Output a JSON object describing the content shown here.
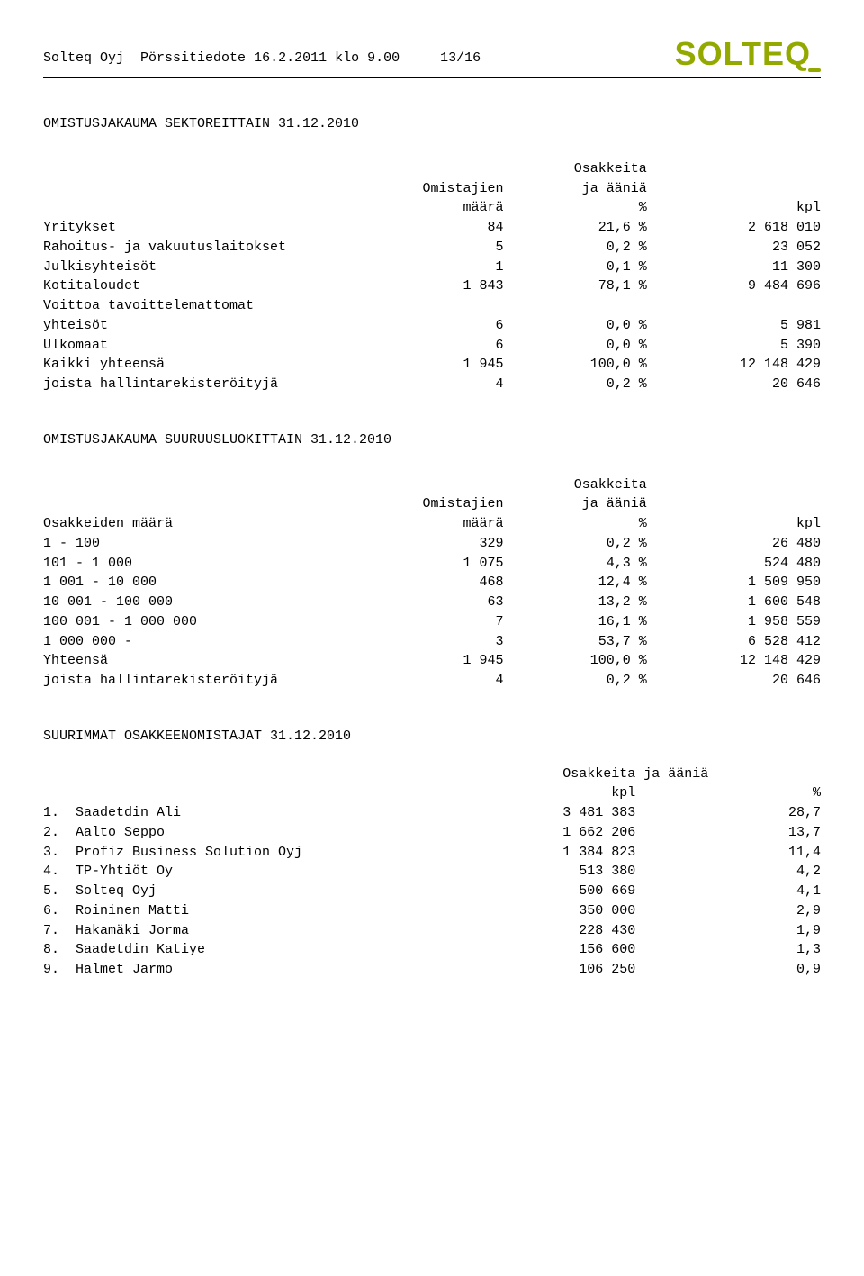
{
  "header": {
    "company": "Solteq Oyj",
    "doc_type": "Pörssitiedote",
    "date": "16.2.2011",
    "time_prefix": "klo",
    "time": "9.00",
    "page": "13/16",
    "logo_text": "SOLTE",
    "logo_q": "Q"
  },
  "sector_table": {
    "title": "OMISTUSJAKAUMA SEKTOREITTAIN 31.12.2010",
    "header_col2_line1": "Omistajien",
    "header_col2_line2": "määrä",
    "header_col3_line1": "Osakkeita",
    "header_col3_line2": "ja ääniä",
    "header_col3_line3": "%",
    "header_col4": "kpl",
    "rows": [
      {
        "label": "Yritykset",
        "count": "84",
        "pct": "21,6 %",
        "shares": "2 618 010"
      },
      {
        "label": "Rahoitus- ja vakuutuslaitokset",
        "count": "5",
        "pct": "0,2 %",
        "shares": "23 052"
      },
      {
        "label": "Julkisyhteisöt",
        "count": "1",
        "pct": "0,1 %",
        "shares": "11 300"
      },
      {
        "label": "Kotitaloudet",
        "count": "1 843",
        "pct": "78,1 %",
        "shares": "9 484 696"
      }
    ],
    "voittoa_line1": "Voittoa tavoittelemattomat",
    "voittoa_line2": "yhteisöt",
    "voittoa_count": "6",
    "voittoa_pct": "0,0 %",
    "voittoa_shares": "5 981",
    "ulkomaat": {
      "label": "Ulkomaat",
      "count": "6",
      "pct": "0,0 %",
      "shares": "5 390"
    },
    "kaikki": {
      "label": "Kaikki yhteensä",
      "count": "1 945",
      "pct": "100,0 %",
      "shares": "12 148 429"
    },
    "joista": {
      "label": "joista hallintarekisteröityjä",
      "count": "4",
      "pct": "0,2 %",
      "shares": "20 646"
    }
  },
  "size_table": {
    "title": "OMISTUSJAKAUMA SUURUUSLUOKITTAIN 31.12.2010",
    "header_col1": "Osakkeiden määrä",
    "header_col2_line1": "Omistajien",
    "header_col2_line2": "määrä",
    "header_col3_line1": "Osakkeita",
    "header_col3_line2": "ja ääniä",
    "header_col3_line3": "%",
    "header_col4": "kpl",
    "rows": [
      {
        "label": "1 - 100",
        "count": "329",
        "pct": "0,2 %",
        "shares": "26 480"
      },
      {
        "label": "101 - 1 000",
        "count": "1 075",
        "pct": "4,3 %",
        "shares": "524 480"
      },
      {
        "label": "1 001 - 10 000",
        "count": "468",
        "pct": "12,4 %",
        "shares": "1 509 950"
      },
      {
        "label": "10 001 - 100 000",
        "count": "63",
        "pct": "13,2 %",
        "shares": "1 600 548"
      },
      {
        "label": "100 001 - 1 000 000",
        "count": "7",
        "pct": "16,1 %",
        "shares": "1 958 559"
      },
      {
        "label": "1 000 000 -",
        "count": "3",
        "pct": "53,7 %",
        "shares": "6 528 412"
      }
    ],
    "yhteensa": {
      "label": "Yhteensä",
      "count": "1 945",
      "pct": "100,0 %",
      "shares": "12 148 429"
    },
    "joista": {
      "label": "joista hallintarekisteröityjä",
      "count": "4",
      "pct": "0,2 %",
      "shares": "20 646"
    }
  },
  "shareholders": {
    "title": "SUURIMMAT OSAKKEENOMISTAJAT 31.12.2010",
    "header_line1": "Osakkeita ja ääniä",
    "header_kpl": "kpl",
    "header_pct": "%",
    "rows": [
      {
        "n": "1.",
        "name": "Saadetdin Ali",
        "shares": "3 481 383",
        "pct": "28,7"
      },
      {
        "n": "2.",
        "name": "Aalto Seppo",
        "shares": "1 662 206",
        "pct": "13,7"
      },
      {
        "n": "3.",
        "name": "Profiz Business Solution Oyj",
        "shares": "1 384 823",
        "pct": "11,4"
      },
      {
        "n": "4.",
        "name": "TP-Yhtiöt Oy",
        "shares": "513 380",
        "pct": "4,2"
      },
      {
        "n": "5.",
        "name": "Solteq Oyj",
        "shares": "500 669",
        "pct": "4,1"
      },
      {
        "n": "6.",
        "name": "Roininen Matti",
        "shares": "350 000",
        "pct": "2,9"
      },
      {
        "n": "7.",
        "name": "Hakamäki Jorma",
        "shares": "228 430",
        "pct": "1,9"
      },
      {
        "n": "8.",
        "name": "Saadetdin Katiye",
        "shares": "156 600",
        "pct": "1,3"
      },
      {
        "n": "9.",
        "name": "Halmet Jarmo",
        "shares": "106 250",
        "pct": "0,9"
      }
    ]
  }
}
